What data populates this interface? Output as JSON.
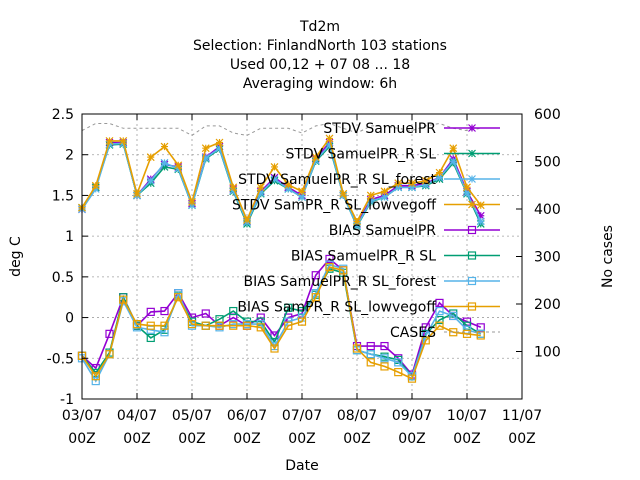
{
  "chart_data": {
    "type": "line",
    "title_lines": [
      "Td2m",
      "Selection: FinlandNorth    103 stations",
      "Used  00,12  + 07 08 ... 18",
      "Averaging window:  6h"
    ],
    "xlabel": "Date",
    "ylabel": "deg C",
    "y2label": "No cases",
    "xlim": [
      0,
      8
    ],
    "ylim": [
      -1,
      2.5
    ],
    "y2lim": [
      0,
      600
    ],
    "x_ticks": [
      {
        "x": 0,
        "line1": "03/07",
        "line2": "00Z"
      },
      {
        "x": 1,
        "line1": "04/07",
        "line2": "00Z"
      },
      {
        "x": 2,
        "line1": "05/07",
        "line2": "00Z"
      },
      {
        "x": 3,
        "line1": "06/07",
        "line2": "00Z"
      },
      {
        "x": 4,
        "line1": "07/07",
        "line2": "00Z"
      },
      {
        "x": 5,
        "line1": "08/07",
        "line2": "00Z"
      },
      {
        "x": 6,
        "line1": "09/07",
        "line2": "00Z"
      },
      {
        "x": 7,
        "line1": "10/07",
        "line2": "00Z"
      },
      {
        "x": 8,
        "line1": "11/07",
        "line2": "00Z"
      }
    ],
    "y_ticks": [
      "-1",
      "-0.5",
      "0",
      "0.5",
      "1",
      "1.5",
      "2",
      "2.5"
    ],
    "y2_ticks": [
      "100",
      "200",
      "300",
      "400",
      "500",
      "600"
    ],
    "grid": true,
    "legend_position": "top-right",
    "x": [
      0,
      0.25,
      0.5,
      0.75,
      1,
      1.25,
      1.5,
      1.75,
      2,
      2.25,
      2.5,
      2.75,
      3,
      3.25,
      3.5,
      3.75,
      4,
      4.25,
      4.5,
      4.75,
      5,
      5.25,
      5.5,
      5.75,
      6,
      6.25,
      6.5,
      6.75,
      7,
      7.25,
      7.5
    ],
    "series": [
      {
        "name": "STDV SamuelPR",
        "color": "#9400d3",
        "marker": "star",
        "dash": "",
        "values": [
          1.33,
          1.6,
          2.15,
          2.15,
          1.5,
          1.7,
          1.88,
          1.85,
          1.4,
          1.97,
          2.1,
          1.58,
          1.18,
          1.55,
          1.72,
          1.6,
          1.5,
          1.95,
          2.15,
          1.5,
          1.15,
          1.45,
          1.5,
          1.62,
          1.62,
          1.65,
          1.72,
          1.95,
          1.55,
          1.25,
          null
        ]
      },
      {
        "name": "STDV SamuelPR_R SL",
        "color": "#009e73",
        "marker": "star",
        "dash": "",
        "values": [
          1.35,
          1.6,
          2.12,
          2.13,
          1.5,
          1.65,
          1.85,
          1.82,
          1.38,
          1.95,
          2.07,
          1.55,
          1.15,
          1.52,
          1.68,
          1.58,
          1.48,
          1.92,
          2.1,
          1.5,
          1.12,
          1.42,
          1.48,
          1.6,
          1.6,
          1.62,
          1.7,
          1.9,
          1.52,
          1.15,
          null
        ]
      },
      {
        "name": "STDV SamuelPR_R SL_forest",
        "color": "#56b4e9",
        "marker": "star",
        "dash": "",
        "values": [
          1.33,
          1.58,
          2.13,
          2.14,
          1.5,
          1.68,
          1.9,
          1.83,
          1.38,
          1.96,
          2.08,
          1.56,
          1.17,
          1.53,
          1.7,
          1.58,
          1.48,
          1.93,
          2.12,
          1.5,
          1.13,
          1.43,
          1.48,
          1.6,
          1.6,
          1.63,
          1.72,
          1.92,
          1.53,
          1.18,
          null
        ]
      },
      {
        "name": "STDV SamPR_R SL_lowvegoff",
        "color": "#e69f00",
        "marker": "star",
        "dash": "",
        "values": [
          1.35,
          1.62,
          2.17,
          2.17,
          1.52,
          1.97,
          2.1,
          1.87,
          1.42,
          2.08,
          2.15,
          1.6,
          1.2,
          1.6,
          1.85,
          1.63,
          1.55,
          1.97,
          2.2,
          1.52,
          1.18,
          1.5,
          1.55,
          1.65,
          1.65,
          1.68,
          1.78,
          2.08,
          1.6,
          1.38,
          null
        ]
      },
      {
        "name": "BIAS SamuelPR",
        "color": "#9400d3",
        "marker": "square",
        "dash": "",
        "values": [
          -0.47,
          -0.62,
          -0.2,
          0.25,
          -0.1,
          0.07,
          0.08,
          0.3,
          0.0,
          0.05,
          -0.1,
          0.0,
          -0.1,
          0.0,
          -0.22,
          0.0,
          0.05,
          0.52,
          0.72,
          0.58,
          -0.35,
          -0.35,
          -0.35,
          -0.5,
          -0.7,
          -0.12,
          0.18,
          0.02,
          -0.05,
          -0.12,
          null
        ]
      },
      {
        "name": "BIAS SamuelPR_R SL",
        "color": "#009e73",
        "marker": "square",
        "dash": "",
        "values": [
          -0.47,
          -0.68,
          -0.43,
          0.25,
          -0.1,
          -0.25,
          -0.15,
          0.27,
          -0.05,
          -0.1,
          -0.02,
          0.08,
          -0.05,
          -0.05,
          -0.3,
          0.12,
          0.08,
          0.28,
          0.6,
          0.55,
          -0.4,
          -0.45,
          -0.48,
          -0.52,
          -0.72,
          -0.2,
          -0.03,
          0.05,
          -0.1,
          -0.2,
          null
        ]
      },
      {
        "name": "BIAS SamuelPR_R SL_forest",
        "color": "#56b4e9",
        "marker": "square",
        "dash": "",
        "values": [
          -0.5,
          -0.78,
          -0.45,
          0.2,
          -0.12,
          -0.15,
          -0.18,
          0.3,
          -0.1,
          -0.1,
          -0.12,
          -0.08,
          -0.08,
          -0.08,
          -0.35,
          -0.05,
          0.0,
          0.3,
          0.65,
          0.6,
          -0.4,
          -0.45,
          -0.5,
          -0.55,
          -0.72,
          -0.22,
          0.08,
          0.02,
          -0.15,
          -0.2,
          null
        ]
      },
      {
        "name": "BIAS SamPR_R SL_lowvegoff",
        "color": "#e69f00",
        "marker": "square",
        "dash": "",
        "values": [
          -0.47,
          -0.72,
          -0.45,
          0.22,
          -0.08,
          -0.1,
          -0.1,
          0.25,
          -0.08,
          -0.1,
          -0.1,
          -0.1,
          -0.1,
          -0.12,
          -0.38,
          -0.1,
          -0.05,
          0.25,
          0.62,
          0.58,
          -0.38,
          -0.55,
          -0.6,
          -0.67,
          -0.75,
          -0.28,
          -0.1,
          -0.18,
          -0.2,
          -0.22,
          null
        ]
      },
      {
        "name": "CASES",
        "color": "#999999",
        "marker": "none",
        "dash": "3,3",
        "axis": "y2",
        "values": [
          565,
          580,
          580,
          570,
          570,
          570,
          570,
          570,
          555,
          575,
          575,
          560,
          555,
          570,
          570,
          570,
          560,
          575,
          580,
          570,
          560,
          575,
          575,
          570,
          565,
          575,
          580,
          570,
          565,
          570,
          null
        ]
      }
    ]
  }
}
